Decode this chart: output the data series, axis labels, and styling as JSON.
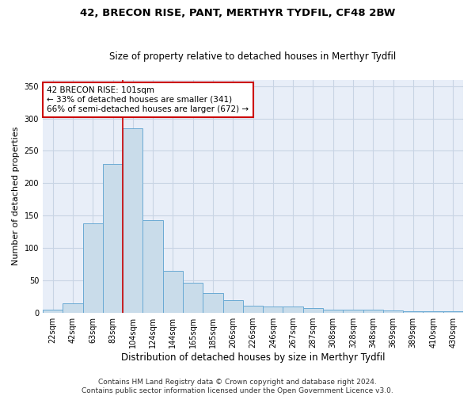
{
  "title1": "42, BRECON RISE, PANT, MERTHYR TYDFIL, CF48 2BW",
  "title2": "Size of property relative to detached houses in Merthyr Tydfil",
  "xlabel": "Distribution of detached houses by size in Merthyr Tydfil",
  "ylabel": "Number of detached properties",
  "categories": [
    "22sqm",
    "42sqm",
    "63sqm",
    "83sqm",
    "104sqm",
    "124sqm",
    "144sqm",
    "165sqm",
    "185sqm",
    "206sqm",
    "226sqm",
    "246sqm",
    "267sqm",
    "287sqm",
    "308sqm",
    "328sqm",
    "348sqm",
    "369sqm",
    "389sqm",
    "410sqm",
    "430sqm"
  ],
  "values": [
    5,
    14,
    138,
    230,
    285,
    143,
    65,
    46,
    30,
    19,
    11,
    9,
    9,
    7,
    4,
    4,
    5,
    3,
    2,
    2,
    2
  ],
  "bar_color": "#c9dcea",
  "bar_edge_color": "#6aaad4",
  "bar_edge_width": 0.7,
  "grid_color": "#c8d4e4",
  "background_color": "#e8eef8",
  "property_line_color": "#cc0000",
  "annotation_text": "42 BRECON RISE: 101sqm\n← 33% of detached houses are smaller (341)\n66% of semi-detached houses are larger (672) →",
  "annotation_box_color": "#ffffff",
  "annotation_box_edge": "#cc0000",
  "ylim": [
    0,
    360
  ],
  "yticks": [
    0,
    50,
    100,
    150,
    200,
    250,
    300,
    350
  ],
  "footnote": "Contains HM Land Registry data © Crown copyright and database right 2024.\nContains public sector information licensed under the Open Government Licence v3.0.",
  "title1_fontsize": 9.5,
  "title2_fontsize": 8.5,
  "xlabel_fontsize": 8.5,
  "ylabel_fontsize": 8,
  "tick_fontsize": 7,
  "annotation_fontsize": 7.5,
  "footnote_fontsize": 6.5
}
